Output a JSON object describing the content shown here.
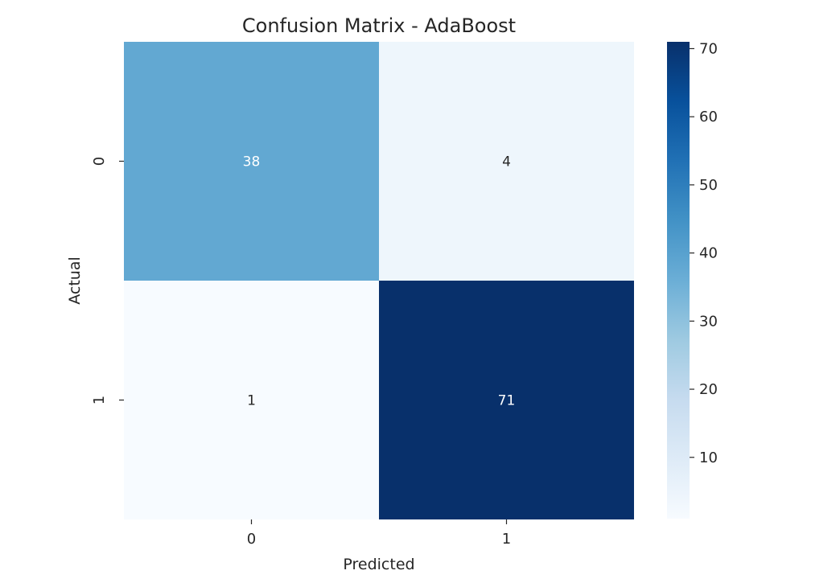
{
  "chart_data": {
    "type": "heatmap",
    "title": "Confusion Matrix - AdaBoost",
    "xlabel": "Predicted",
    "ylabel": "Actual",
    "x_categories": [
      "0",
      "1"
    ],
    "y_categories": [
      "0",
      "1"
    ],
    "values": [
      [
        38,
        4
      ],
      [
        1,
        71
      ]
    ],
    "colormap": "Blues",
    "color_range": [
      1,
      71
    ],
    "colorbar_ticks": [
      10,
      20,
      30,
      40,
      50,
      60,
      70
    ],
    "colors": {
      "low": "#f7fbff",
      "high": "#08306b",
      "annotation_dark": "#262626",
      "annotation_light": "#ffffff"
    }
  }
}
